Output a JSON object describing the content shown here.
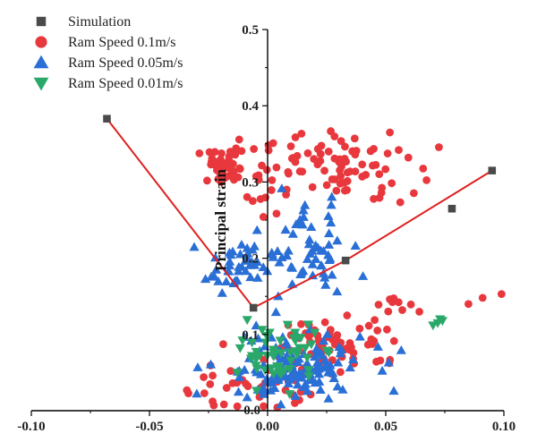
{
  "chart_data": {
    "type": "scatter",
    "title": "",
    "xlabel": "",
    "ylabel": "Principal strain",
    "xlim": [
      -0.1,
      0.1
    ],
    "ylim": [
      0.0,
      0.5
    ],
    "xticks": [
      "-0.10",
      "-0.05",
      "0.00",
      "0.05",
      "0.10"
    ],
    "xtick_values": [
      -0.1,
      -0.05,
      0.0,
      0.05,
      0.1
    ],
    "yticks": [
      "0.1",
      "0.2",
      "0.3",
      "0.4",
      "0.5"
    ],
    "ytick_values": [
      0.1,
      0.2,
      0.3,
      0.4,
      0.5
    ],
    "y_zero_label": "0.0",
    "legend": [
      {
        "name": "Simulation",
        "marker": "square",
        "color": "#4a4a4a"
      },
      {
        "name": "Ram Speed 0.1m/s",
        "marker": "circle",
        "color": "#e8383d"
      },
      {
        "name": "Ram Speed 0.05m/s",
        "marker": "triangle-up",
        "color": "#2a6fd6"
      },
      {
        "name": "Ram Speed 0.01m/s",
        "marker": "triangle-down",
        "color": "#2aa86a"
      }
    ],
    "line_color": "#e02020",
    "series": [
      {
        "name": "Simulation",
        "x": [
          -0.068,
          -0.006,
          0.033,
          0.095
        ],
        "y": [
          0.383,
          0.135,
          0.197,
          0.315
        ],
        "extra_points": [
          [
            0.078,
            0.265
          ]
        ]
      },
      {
        "name": "Ram Speed 0.1m/s",
        "clusters": [
          {
            "cx": -0.018,
            "cy": 0.32,
            "sx": 0.006,
            "sy": 0.012,
            "n": 45
          },
          {
            "cx": 0.03,
            "cy": 0.32,
            "sx": 0.016,
            "sy": 0.022,
            "n": 80
          },
          {
            "cx": 0.005,
            "cy": 0.29,
            "sx": 0.008,
            "sy": 0.02,
            "n": 12
          },
          {
            "cx": 0.03,
            "cy": 0.09,
            "sx": 0.015,
            "sy": 0.02,
            "n": 70
          },
          {
            "cx": -0.01,
            "cy": 0.03,
            "sx": 0.012,
            "sy": 0.02,
            "n": 40
          },
          {
            "cx": 0.055,
            "cy": 0.135,
            "sx": 0.008,
            "sy": 0.01,
            "n": 8
          }
        ],
        "extra_points": [
          [
            0.085,
            0.14
          ],
          [
            0.099,
            0.153
          ],
          [
            0.091,
            0.148
          ],
          [
            0.057,
            0.132
          ]
        ]
      },
      {
        "name": "Ram Speed 0.05m/s",
        "clusters": [
          {
            "cx": -0.012,
            "cy": 0.19,
            "sx": 0.007,
            "sy": 0.015,
            "n": 45
          },
          {
            "cx": 0.017,
            "cy": 0.21,
            "sx": 0.009,
            "sy": 0.03,
            "n": 55
          },
          {
            "cx": 0.01,
            "cy": 0.055,
            "sx": 0.016,
            "sy": 0.025,
            "n": 130
          }
        ]
      },
      {
        "name": "Ram Speed 0.01m/s",
        "clusters": [
          {
            "cx": 0.005,
            "cy": 0.075,
            "sx": 0.008,
            "sy": 0.02,
            "n": 55
          }
        ],
        "extra_points": [
          [
            0.072,
            0.115
          ],
          [
            0.074,
            0.118
          ],
          [
            0.07,
            0.112
          ],
          [
            0.073,
            0.12
          ]
        ]
      }
    ]
  }
}
